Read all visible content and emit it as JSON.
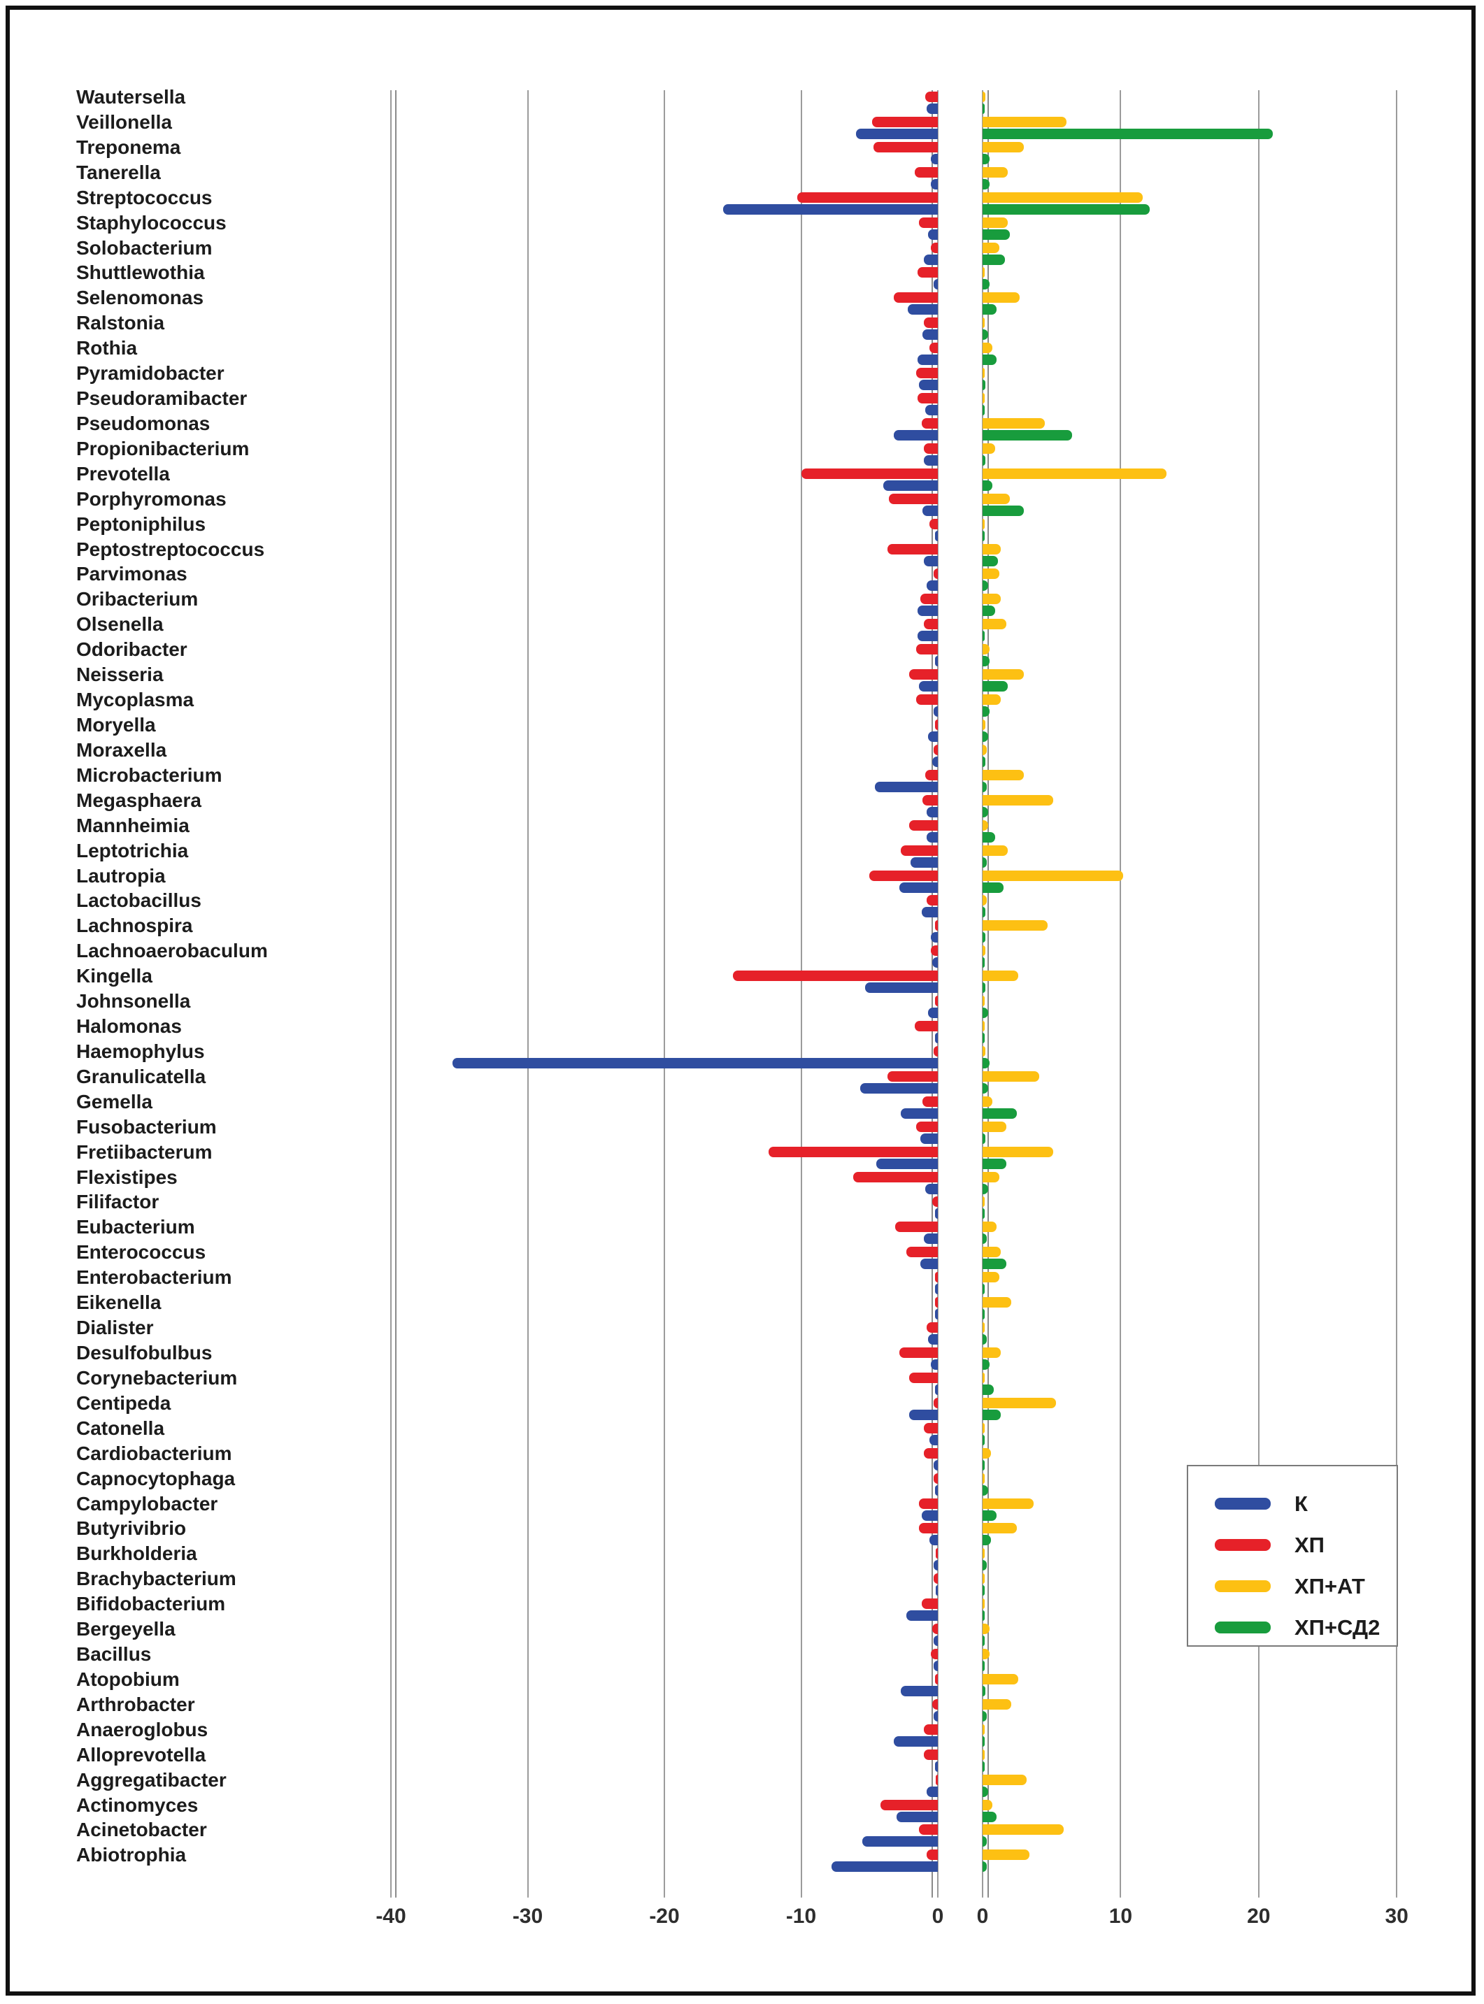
{
  "figure": {
    "kind": "horizontal grouped bar chart, two mirrored panels (negative left panel, positive right panel)",
    "background": "#ffffff",
    "frame_color": "#111111",
    "gridline_color": "#9b9b9b"
  },
  "legend": {
    "position": "right-middle",
    "entries": [
      {
        "label": "К",
        "color": "#2f4da0"
      },
      {
        "label": "ХП",
        "color": "#e62129"
      },
      {
        "label": "ХП+АТ",
        "color": "#fdc013"
      },
      {
        "label": "ХП+СД2",
        "color": "#189c3d"
      }
    ]
  },
  "chart_data": {
    "type": "bar",
    "orientation": "horizontal",
    "title": "",
    "grid": true,
    "legend_position": "right-middle",
    "series": [
      {
        "key": "K",
        "name": "К",
        "color": "#2f4da0",
        "panel": "left",
        "slot": "bottom"
      },
      {
        "key": "XP",
        "name": "ХП",
        "color": "#e62129",
        "panel": "left",
        "slot": "top"
      },
      {
        "key": "XPAT",
        "name": "ХП+АТ",
        "color": "#fdc013",
        "panel": "right",
        "slot": "top"
      },
      {
        "key": "XPSD2",
        "name": "ХП+СД2",
        "color": "#189c3d",
        "panel": "right",
        "slot": "bottom"
      }
    ],
    "axes": {
      "left_panel": {
        "min": -40,
        "max": 0,
        "ticks": [
          -40,
          -30,
          -20,
          -10,
          0
        ]
      },
      "right_panel": {
        "min": 0,
        "max": 35,
        "ticks": [
          0,
          10,
          20,
          30
        ]
      }
    },
    "categories": [
      "Wautersella",
      "Veillonella",
      "Treponema",
      "Tanerella",
      "Streptococcus",
      "Staphylococcus",
      "Solobacterium",
      "Shuttlewothia",
      "Selenomonas",
      "Ralstonia",
      "Rothia",
      "Pyramidobacter",
      "Pseudoramibacter",
      "Pseudomonas",
      "Propionibacterium",
      "Prevotella",
      "Porphyromonas",
      "Peptoniphilus",
      "Peptostreptococcus",
      "Parvimonas",
      "Oribacterium",
      "Olsenella",
      "Odoribacter",
      "Neisseria",
      "Mycoplasma",
      "Moryella",
      "Moraxella",
      "Microbacterium",
      "Megasphaera",
      "Mannheimia",
      "Leptotrichia",
      "Lautropia",
      "Lactobacillus",
      "Lachnospira",
      "Lachnoaerobaculum",
      "Kingella",
      "Johnsonella",
      "Halomonas",
      "Haemophylus",
      "Granulicatella",
      "Gemella",
      "Fusobacterium",
      "Fretiibacterum",
      "Flexistipes",
      "Filifactor",
      "Eubacterium",
      "Enterococcus",
      "Enterobacterium",
      "Eikenella",
      "Dialister",
      "Desulfobulbus",
      "Corynebacterium",
      "Centipeda",
      "Catonella",
      "Cardiobacterium",
      "Capnocytophaga",
      "Campylobacter",
      "Butyrivibrio",
      "Burkholderia",
      "Brachybacterium",
      "Bifidobacterium",
      "Bergeyella",
      "Bacillus",
      "Atopobium",
      "Arthrobacter",
      "Anaeroglobus",
      "Alloprevotella",
      "Aggregatibacter",
      "Actinomyces",
      "Acinetobacter",
      "Abiotrophia"
    ],
    "values": {
      "K": [
        -0.8,
        -6.0,
        -0.5,
        -0.5,
        -15.7,
        -0.7,
        -1.0,
        -0.3,
        -2.2,
        -1.1,
        -1.5,
        -1.4,
        -0.9,
        -3.2,
        -1.0,
        -4.0,
        -1.1,
        -0.2,
        -1.0,
        -0.8,
        -1.5,
        -1.5,
        -0.2,
        -1.4,
        -0.3,
        -0.7,
        -0.4,
        -4.6,
        -0.8,
        -0.8,
        -2.0,
        -2.8,
        -1.2,
        -0.5,
        -0.4,
        -5.3,
        -0.7,
        -0.2,
        -35.5,
        -5.7,
        -2.7,
        -1.3,
        -4.5,
        -0.9,
        -0.2,
        -1.0,
        -1.3,
        -0.2,
        -0.2,
        -0.7,
        -0.5,
        -0.2,
        -2.1,
        -0.6,
        -0.3,
        -0.2,
        -1.2,
        -0.6,
        -0.3,
        -0.1,
        -2.3,
        -0.3,
        -0.3,
        -2.7,
        -0.3,
        -3.2,
        -0.2,
        -0.8,
        -3.0,
        -5.5,
        -7.8
      ],
      "XP": [
        -0.9,
        -4.8,
        -4.7,
        -1.7,
        -10.3,
        -1.4,
        -0.5,
        -1.5,
        -3.2,
        -1.0,
        -0.6,
        -1.6,
        -1.5,
        -1.2,
        -1.0,
        -10.0,
        -3.6,
        -0.6,
        -3.7,
        -0.3,
        -1.3,
        -1.0,
        -1.6,
        -2.1,
        -1.6,
        -0.2,
        -0.3,
        -0.9,
        -1.1,
        -2.1,
        -2.7,
        -5.0,
        -0.8,
        -0.2,
        -0.5,
        -15.0,
        -0.2,
        -1.7,
        -0.3,
        -3.7,
        -1.1,
        -1.6,
        -12.4,
        -6.2,
        -0.4,
        -3.1,
        -2.3,
        -0.2,
        -0.2,
        -0.8,
        -2.8,
        -2.1,
        -0.3,
        -1.0,
        -1.0,
        -0.3,
        -1.4,
        -1.4,
        -0.1,
        -0.3,
        -1.2,
        -0.4,
        -0.5,
        -0.2,
        -0.4,
        -1.0,
        -1.0,
        -0.1,
        -4.2,
        -1.4,
        -0.8
      ],
      "XPAT": [
        0.2,
        6.1,
        3.0,
        1.8,
        11.6,
        1.8,
        1.2,
        0.1,
        2.7,
        0.1,
        0.7,
        0.1,
        0.1,
        4.5,
        0.9,
        13.3,
        2.0,
        0.1,
        1.3,
        1.2,
        1.3,
        1.7,
        0.5,
        3.0,
        1.3,
        0.2,
        0.3,
        3.0,
        5.1,
        0.4,
        1.8,
        10.2,
        0.3,
        4.7,
        0.2,
        2.6,
        0.1,
        0.1,
        0.2,
        4.1,
        0.7,
        1.7,
        5.1,
        1.2,
        0.1,
        1.0,
        1.3,
        1.2,
        2.1,
        0.1,
        1.3,
        0.1,
        5.3,
        0.1,
        0.6,
        0.1,
        3.7,
        2.5,
        0.1,
        0.1,
        0.1,
        0.5,
        0.5,
        2.6,
        2.1,
        0.1,
        0.1,
        3.2,
        0.7,
        5.9,
        3.4
      ],
      "XPSD2": [
        0.1,
        21.0,
        0.5,
        0.5,
        12.1,
        2.0,
        1.6,
        0.5,
        1.0,
        0.4,
        1.0,
        0.2,
        0.1,
        6.5,
        0.2,
        0.7,
        3.0,
        0.1,
        1.1,
        0.4,
        0.9,
        0.1,
        0.5,
        1.8,
        0.5,
        0.4,
        0.2,
        0.3,
        0.4,
        0.9,
        0.3,
        1.5,
        0.2,
        0.2,
        0.1,
        0.2,
        0.4,
        0.1,
        0.5,
        0.4,
        2.5,
        0.2,
        1.7,
        0.4,
        0.1,
        0.3,
        1.7,
        0.1,
        0.1,
        0.3,
        0.5,
        0.8,
        1.3,
        0.1,
        0.1,
        0.4,
        1.0,
        0.6,
        0.3,
        0.1,
        0.1,
        0.1,
        0.1,
        0.2,
        0.3,
        0.1,
        0.1,
        0.4,
        1.0,
        0.3,
        0.3
      ]
    }
  }
}
